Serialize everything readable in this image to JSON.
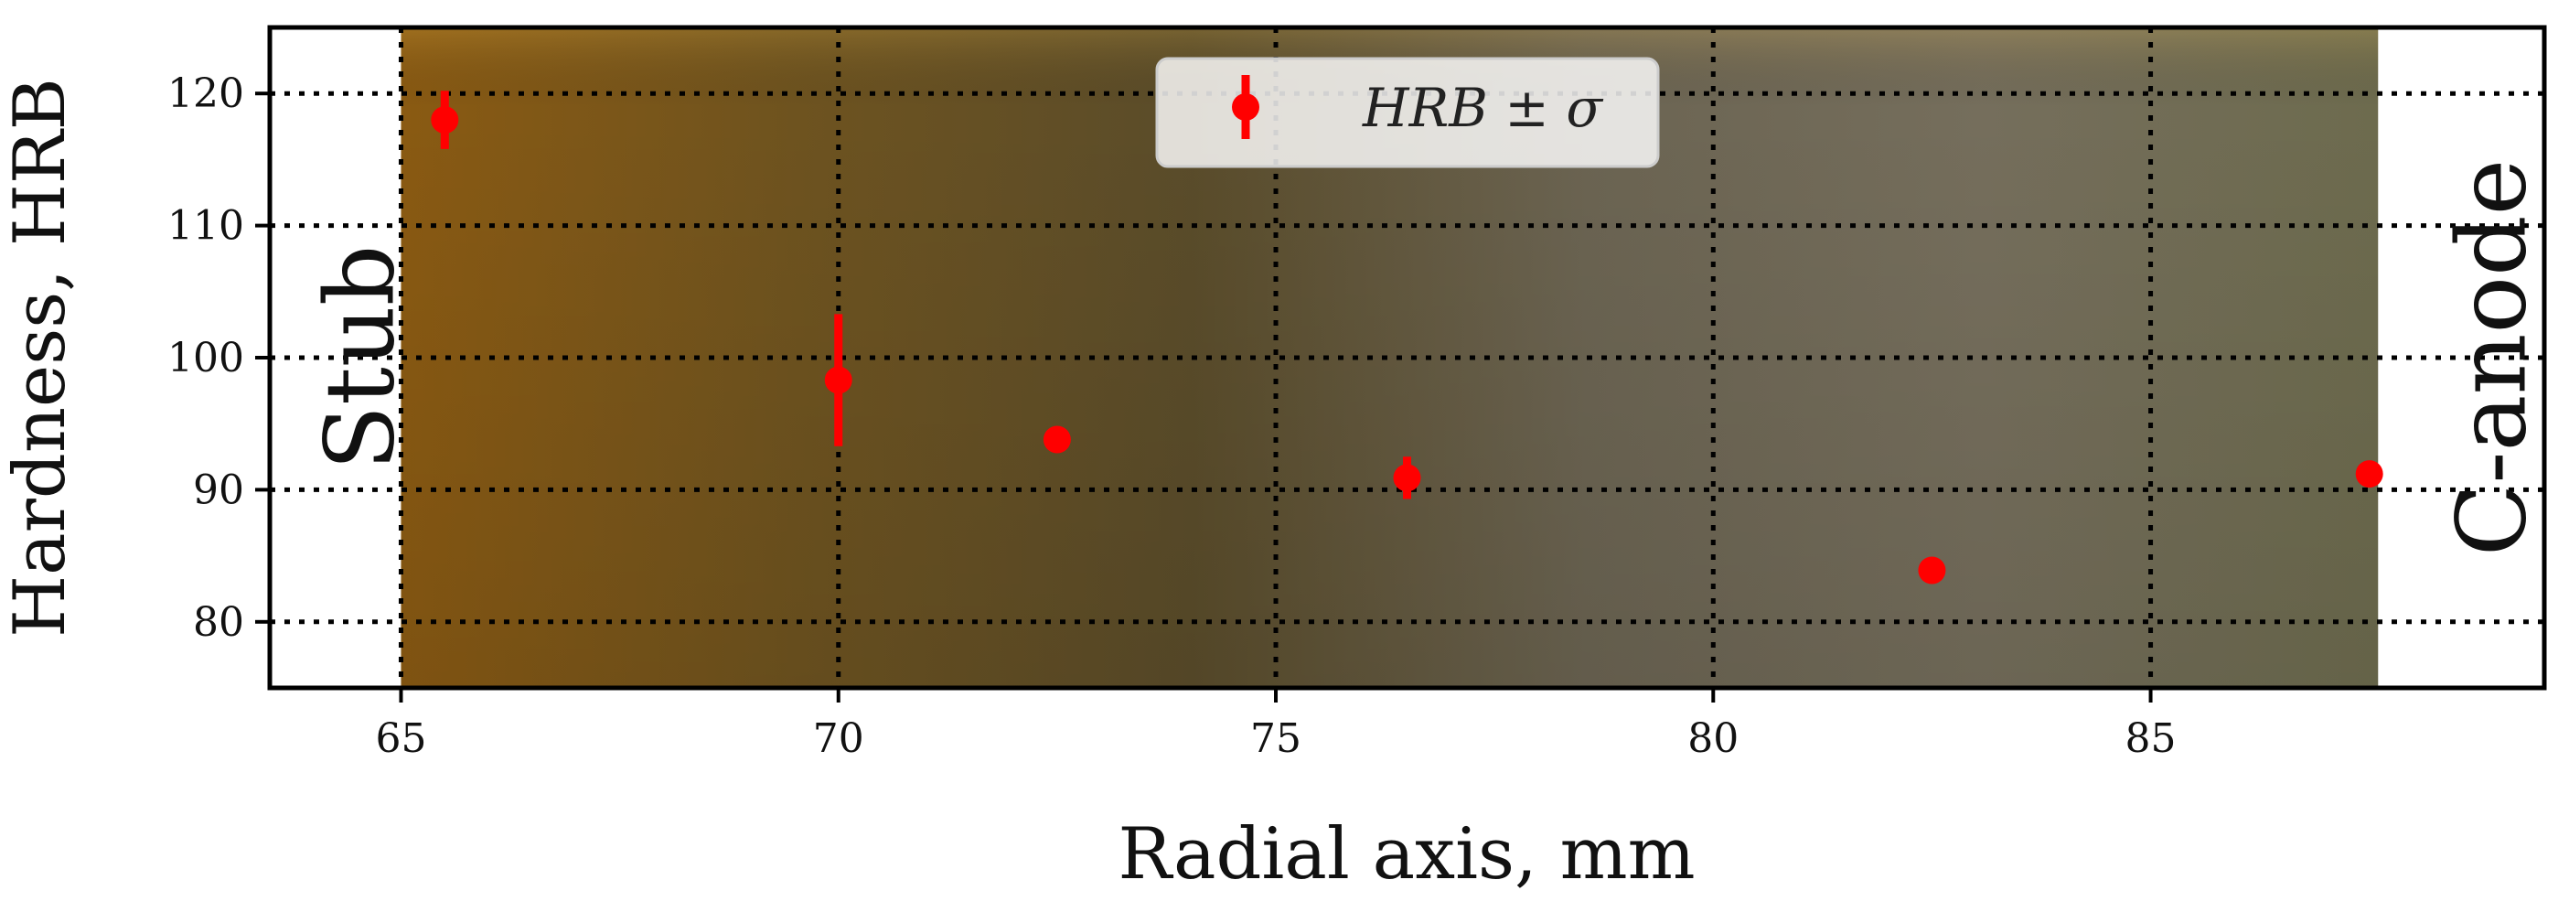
{
  "chart_data": {
    "type": "scatter",
    "xlabel": "Radial axis, mm",
    "ylabel": "Hardness, HRB",
    "xlim": [
      63.5,
      89.5
    ],
    "ylim": [
      75,
      125
    ],
    "xticks": [
      65,
      70,
      75,
      80,
      85
    ],
    "yticks": [
      80,
      90,
      100,
      110,
      120
    ],
    "grid": true,
    "legend_position": "top-center",
    "series": [
      {
        "name": "HRB ± σ",
        "color": "#ff0000",
        "x": [
          65.5,
          70.0,
          72.5,
          76.5,
          82.5,
          87.5
        ],
        "y": [
          118.0,
          98.3,
          93.8,
          90.9,
          83.9,
          91.2
        ],
        "error": [
          2.2,
          5.0,
          0,
          1.6,
          0,
          0
        ]
      }
    ],
    "background_image": {
      "description_icon": "specimen-photo",
      "x_range": [
        65,
        87.6
      ],
      "colors": [
        "#8a5a12",
        "#6e531f",
        "#5a4c2a",
        "#6b6452",
        "#756e5c",
        "#6d6b4e"
      ]
    },
    "annotations": [
      {
        "text": "Stub",
        "x": 64.95,
        "y": 100
      },
      {
        "text": "C-anode",
        "x": 88.5,
        "y": 100
      }
    ]
  }
}
